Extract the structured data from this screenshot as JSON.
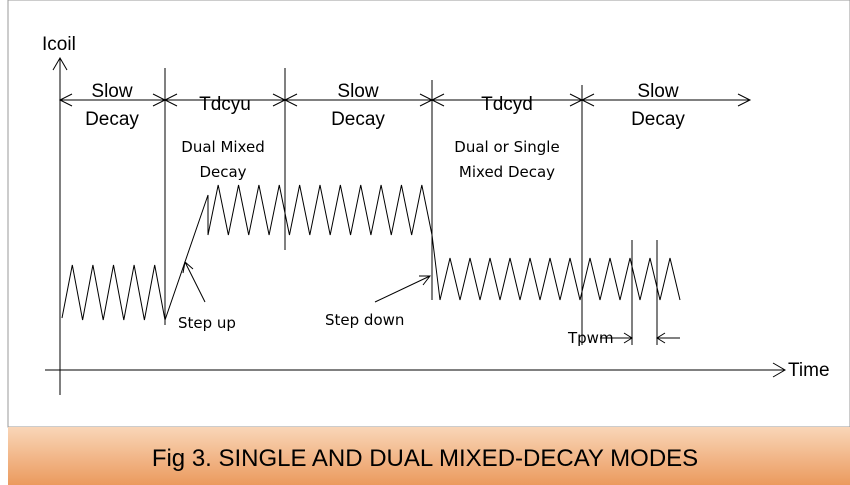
{
  "axes": {
    "y_label": "Icoil",
    "x_label": "Time"
  },
  "regions": [
    {
      "name": [
        "Slow",
        "Decay"
      ]
    },
    {
      "name": [
        "Tdcyu"
      ],
      "description": [
        "Dual Mixed",
        "Decay"
      ]
    },
    {
      "name": [
        "Slow",
        "Decay"
      ]
    },
    {
      "name": [
        "Tdcyd"
      ],
      "description": [
        "Dual or Single",
        "Mixed Decay"
      ]
    },
    {
      "name": [
        "Slow",
        "Decay"
      ]
    }
  ],
  "annotations": {
    "step_up": "Step up",
    "step_down": "Step down",
    "tpwm": "Tpwm"
  },
  "caption": "Fig 3. SINGLE AND DUAL MIXED-DECAY MODES"
}
